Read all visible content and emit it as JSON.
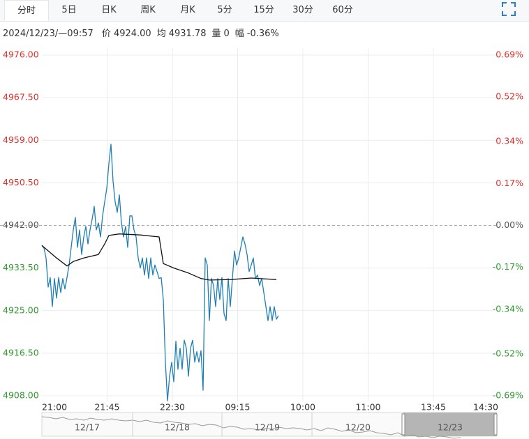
{
  "tabs": {
    "items": [
      "分时",
      "5日",
      "日K",
      "周K",
      "月K",
      "5分",
      "15分",
      "30分",
      "60分"
    ],
    "active": 0
  },
  "info": {
    "time": "2024/12/23/—09:57",
    "items": [
      {
        "label": "价",
        "value": "4924.00"
      },
      {
        "label": "均",
        "value": "4931.78"
      },
      {
        "label": "量",
        "value": "0"
      },
      {
        "label": "幅",
        "value": "-0.36%"
      }
    ]
  },
  "navigator": {
    "dates": [
      "12/17",
      "12/18",
      "12/19",
      "12/20",
      "12/23"
    ]
  },
  "chart_data": {
    "type": "line",
    "up_color": "#e0302a",
    "down_color": "#2e9c2e",
    "flat_color": "#555555",
    "grid": true,
    "xlim": [
      0,
      218
    ],
    "xticks": [
      {
        "value": 0,
        "label": "21:00"
      },
      {
        "value": 31.17,
        "label": "21:45"
      },
      {
        "value": 62.33,
        "label": "22:30"
      },
      {
        "value": 93.5,
        "label": "09:15"
      },
      {
        "value": 124.67,
        "label": "10:00"
      },
      {
        "value": 155.83,
        "label": "11:00"
      },
      {
        "value": 187,
        "label": "13:45"
      },
      {
        "value": 218,
        "label": "14:30"
      }
    ],
    "ylim": [
      4908,
      4976
    ],
    "yticks": [
      {
        "value": 4976,
        "label": "4976.00"
      },
      {
        "value": 4967.5,
        "label": "4967.50"
      },
      {
        "value": 4959,
        "label": "4959.00"
      },
      {
        "value": 4950.5,
        "label": "4950.50"
      },
      {
        "value": 4942,
        "label": "4942.00"
      },
      {
        "value": 4933.5,
        "label": "4933.50"
      },
      {
        "value": 4925,
        "label": "4925.00"
      },
      {
        "value": 4916.5,
        "label": "4916.50"
      },
      {
        "value": 4908,
        "label": "4908.00"
      }
    ],
    "y2lim": [
      -0.69,
      0.69
    ],
    "y2ticks": [
      {
        "value": 0.69,
        "label": "0.69%"
      },
      {
        "value": 0.52,
        "label": "0.52%"
      },
      {
        "value": 0.34,
        "label": "0.34%"
      },
      {
        "value": 0.17,
        "label": "0.17%"
      },
      {
        "value": 0,
        "label": "0.00%"
      },
      {
        "value": -0.17,
        "label": "-0.17%"
      },
      {
        "value": -0.34,
        "label": "-0.34%"
      },
      {
        "value": -0.52,
        "label": "-0.52%"
      },
      {
        "value": -0.69,
        "label": "-0.69%"
      }
    ],
    "series": [
      {
        "color": "#1f7fb4",
        "x": [
          0,
          1,
          2,
          3,
          4,
          5,
          6,
          7,
          8,
          9,
          10,
          11,
          12,
          13,
          14,
          15,
          16,
          17,
          18,
          19,
          20,
          21,
          22,
          23,
          24,
          25,
          26,
          27,
          28,
          29,
          30,
          31,
          32,
          33,
          34,
          35,
          36,
          37,
          38,
          39,
          40,
          41,
          42,
          43,
          44,
          45,
          46,
          47,
          48,
          49,
          50,
          51,
          52,
          53,
          54,
          55,
          56,
          57,
          58,
          59,
          60,
          61,
          62,
          63,
          64,
          65,
          66,
          67,
          68,
          69,
          70,
          71,
          72,
          73,
          74,
          75,
          76,
          77,
          78,
          79,
          80,
          81,
          82,
          83,
          84,
          85,
          86,
          87,
          88,
          89,
          90,
          91,
          92,
          93,
          94,
          95,
          96,
          97,
          98,
          99,
          100,
          101,
          102,
          103,
          104,
          105,
          106,
          107,
          108,
          109,
          110,
          111,
          112,
          113
        ],
        "values": [
          4938.0,
          4937.5,
          4935.5,
          4929.7,
          4931.6,
          4925.8,
          4931.4,
          4927.5,
          4931.6,
          4928.6,
          4931.4,
          4929.3,
          4931.6,
          4934.1,
          4937.6,
          4941.1,
          4943.6,
          4937.6,
          4941.1,
          4936.2,
          4939.7,
          4941.8,
          4938.3,
          4941.1,
          4943.2,
          4945.8,
          4941.1,
          4942.5,
          4939.7,
          4943.9,
          4946.7,
          4949.4,
          4954.3,
          4958.2,
          4950.8,
          4946.7,
          4944.6,
          4948.1,
          4942.5,
          4939.7,
          4941.8,
          4937.6,
          4943.9,
          4943.9,
          4941.1,
          4939.7,
          4935.5,
          4933.5,
          4935.5,
          4932.1,
          4935.5,
          4931.4,
          4935.5,
          4932.1,
          4934.1,
          4932.8,
          4931.4,
          4931.6,
          4927.2,
          4914.7,
          4907.0,
          4911.9,
          4914.7,
          4910.8,
          4918.9,
          4913.3,
          4917.5,
          4913.3,
          4919.1,
          4917.5,
          4911.9,
          4917.5,
          4919.1,
          4914.7,
          4916.8,
          4914.7,
          4917.0,
          4909.1,
          4935.5,
          4934.1,
          4923.0,
          4931.4,
          4930.0,
          4925.8,
          4931.4,
          4927.2,
          4931.6,
          4924.4,
          4923.0,
          4931.4,
          4925.8,
          4931.4,
          4936.9,
          4934.1,
          4935.5,
          4937.6,
          4939.7,
          4938.3,
          4936.2,
          4932.8,
          4934.1,
          4935.5,
          4931.4,
          4932.1,
          4930.0,
          4931.4,
          4928.6,
          4925.8,
          4923.0,
          4925.8,
          4923.0,
          4925.8,
          4923.3,
          4924.0
        ]
      },
      {
        "color": "#111111",
        "x": [
          0,
          7,
          12,
          15,
          20,
          27,
          30,
          32,
          37,
          47,
          56,
          58,
          63,
          70,
          76,
          80,
          90,
          100,
          112
        ],
        "values": [
          4938.0,
          4935.5,
          4933.9,
          4934.8,
          4935.5,
          4936.2,
          4938.3,
          4940.0,
          4940.3,
          4940.1,
          4939.7,
          4934.4,
          4933.5,
          4932.5,
          4931.4,
          4931.1,
          4931.2,
          4931.5,
          4931.2
        ]
      }
    ]
  }
}
